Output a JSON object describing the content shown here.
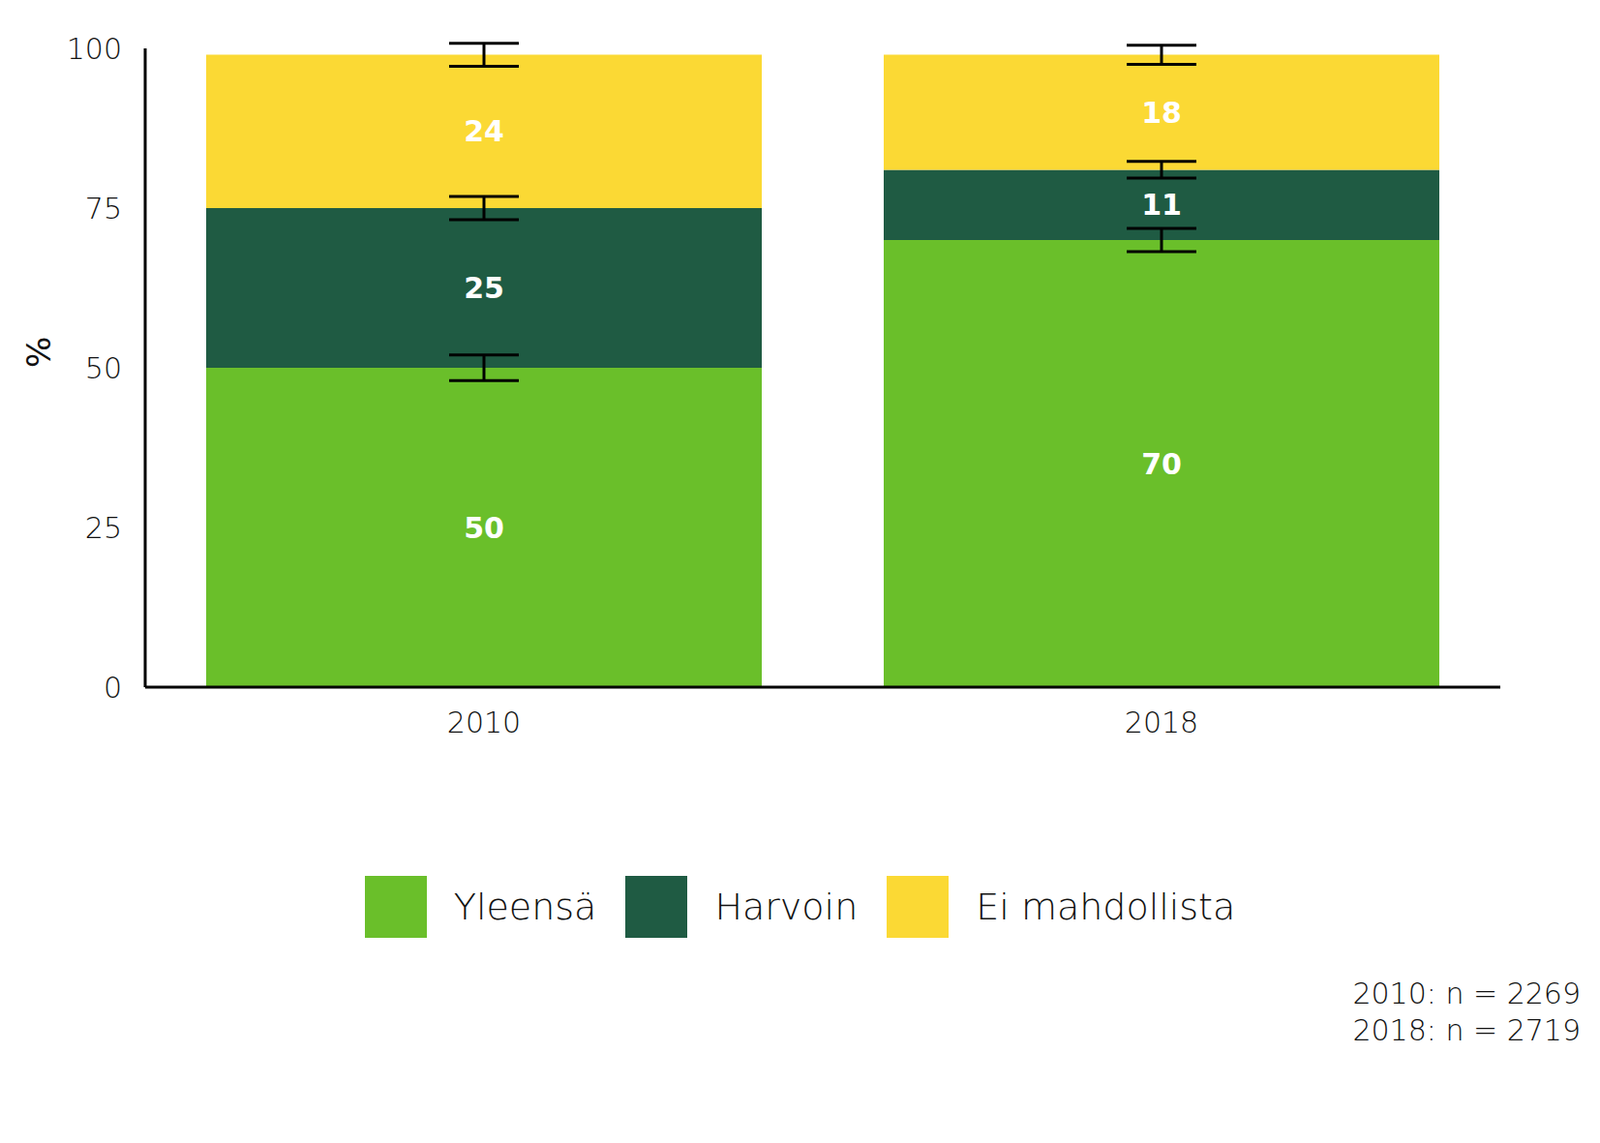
{
  "chart_data": {
    "type": "bar",
    "stacked": true,
    "data_labels": true,
    "grid": false,
    "y_label": "%",
    "categories": [
      "2010",
      "2018"
    ],
    "series": [
      {
        "name": "Yleensä",
        "color": "#6abf2a",
        "values": [
          50,
          70
        ],
        "errors": [
          2,
          1.8
        ]
      },
      {
        "name": "Harvoin",
        "color": "#1f5b43",
        "values": [
          25,
          11
        ],
        "errors": [
          1.8,
          1.3
        ]
      },
      {
        "name": "Ei mahdollista",
        "color": "#fbd934",
        "values": [
          24,
          18
        ],
        "errors": [
          1.8,
          1.5
        ]
      }
    ],
    "ylim": [
      0,
      100
    ],
    "yticks": [
      0,
      25,
      50,
      75,
      100
    ],
    "legend": "bottom",
    "annotations": [
      "2010: n = 2269",
      "2018: n = 2719"
    ]
  }
}
